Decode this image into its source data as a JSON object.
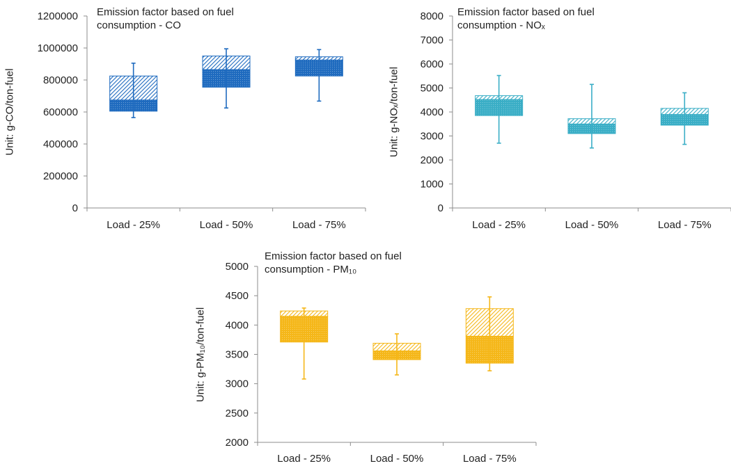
{
  "chart_data": [
    {
      "type": "box",
      "title_line1": "Emission factor based on fuel",
      "title_line2": "consumption - CO",
      "ylabel": "Unit: g-CO/ton-fuel",
      "categories": [
        "Load - 25%",
        "Load - 50%",
        "Load - 75%"
      ],
      "ylim": [
        0,
        1200000
      ],
      "yticks": [
        0,
        200000,
        400000,
        600000,
        800000,
        1000000,
        1200000
      ],
      "ytick_labels": [
        "0",
        "200000",
        "400000",
        "600000",
        "800000",
        "1000000",
        "1200000"
      ],
      "color": "#1f6bbf",
      "boxes": [
        {
          "min": 565000,
          "q1": 605000,
          "median": 675000,
          "q3": 825000,
          "max": 905000
        },
        {
          "min": 625000,
          "q1": 755000,
          "median": 865000,
          "q3": 950000,
          "max": 995000
        },
        {
          "min": 668000,
          "q1": 825000,
          "median": 925000,
          "q3": 945000,
          "max": 990000
        }
      ]
    },
    {
      "type": "box",
      "title_line1": "Emission factor based on fuel",
      "title_line2": "consumption - NOₓ",
      "ylabel": "Unit: g-NOₓ/ton-fuel",
      "categories": [
        "Load - 25%",
        "Load - 50%",
        "Load - 75%"
      ],
      "ylim": [
        0,
        8000
      ],
      "yticks": [
        0,
        1000,
        2000,
        3000,
        4000,
        5000,
        6000,
        7000,
        8000
      ],
      "ytick_labels": [
        "0",
        "1000",
        "2000",
        "3000",
        "4000",
        "5000",
        "6000",
        "7000",
        "8000"
      ],
      "color": "#3aaec6",
      "boxes": [
        {
          "min": 2700,
          "q1": 3850,
          "median": 4520,
          "q3": 4680,
          "max": 5520
        },
        {
          "min": 2500,
          "q1": 3100,
          "median": 3500,
          "q3": 3720,
          "max": 5150
        },
        {
          "min": 2650,
          "q1": 3450,
          "median": 3900,
          "q3": 4150,
          "max": 4800
        }
      ]
    },
    {
      "type": "box",
      "title_line1": "Emission factor based on fuel",
      "title_line2": "consumption - PM₁₀",
      "ylabel": "Unit: g-PM₁₀/ton-fuel",
      "categories": [
        "Load - 25%",
        "Load - 50%",
        "Load - 75%"
      ],
      "ylim": [
        2000,
        5000
      ],
      "yticks": [
        2000,
        2500,
        3000,
        3500,
        4000,
        4500,
        5000
      ],
      "ytick_labels": [
        "2000",
        "2500",
        "3000",
        "3500",
        "4000",
        "4500",
        "5000"
      ],
      "color": "#f5b719",
      "boxes": [
        {
          "min": 3080,
          "q1": 3710,
          "median": 4150,
          "q3": 4240,
          "max": 4290
        },
        {
          "min": 3150,
          "q1": 3410,
          "median": 3560,
          "q3": 3690,
          "max": 3850
        },
        {
          "min": 3220,
          "q1": 3350,
          "median": 3810,
          "q3": 4280,
          "max": 4480
        }
      ]
    }
  ]
}
